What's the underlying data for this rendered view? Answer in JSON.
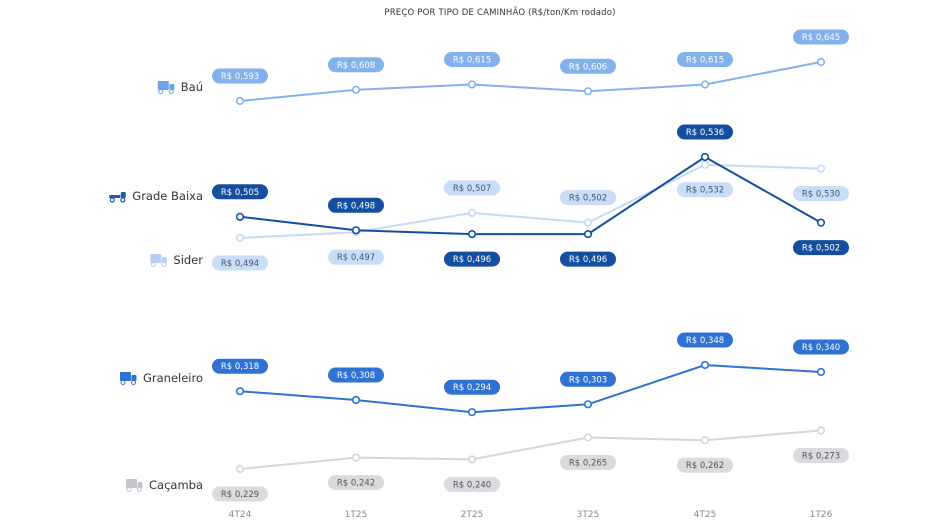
{
  "chart_data": {
    "type": "line",
    "title": "PREÇO POR TIPO DE CAMINHÃO (R$/ton/Km rodado)",
    "categories": [
      "4T24",
      "1T25",
      "2T25",
      "3T25",
      "4T25",
      "1T26"
    ],
    "series": [
      {
        "name": "Baú",
        "icon": "box-truck-icon",
        "values": [
          0.593,
          0.608,
          0.615,
          0.606,
          0.615,
          0.645
        ],
        "labels": [
          "R$ 0,593",
          "R$ 0,608",
          "R$ 0,615",
          "R$ 0,606",
          "R$ 0,615",
          "R$ 0,645"
        ],
        "line_color": "#82b1ec",
        "pill_bg": "#82b1ec",
        "pill_text": "#ffffff"
      },
      {
        "name": "Grade Baixa",
        "icon": "flatbed-truck-icon",
        "values": [
          0.505,
          0.498,
          0.496,
          0.496,
          0.536,
          0.502
        ],
        "labels": [
          "R$ 0,505",
          "R$ 0,498",
          "R$ 0,496",
          "R$ 0,496",
          "R$ 0,536",
          "R$ 0,502"
        ],
        "line_color": "#144ea0",
        "pill_bg": "#144ea0",
        "pill_text": "#ffffff"
      },
      {
        "name": "Sider",
        "icon": "curtain-truck-icon",
        "values": [
          0.494,
          0.497,
          0.507,
          0.502,
          0.532,
          0.53
        ],
        "labels": [
          "R$ 0,494",
          "R$ 0,497",
          "R$ 0,507",
          "R$ 0,502",
          "R$ 0,532",
          "R$ 0,530"
        ],
        "line_color": "#c5daf5",
        "pill_bg": "#c9ddf6",
        "pill_text": "#3f5878"
      },
      {
        "name": "Graneleiro",
        "icon": "grain-truck-icon",
        "values": [
          0.318,
          0.308,
          0.294,
          0.303,
          0.348,
          0.34
        ],
        "labels": [
          "R$ 0,318",
          "R$ 0,308",
          "R$ 0,294",
          "R$ 0,303",
          "R$ 0,348",
          "R$ 0,340"
        ],
        "line_color": "#2f72d3",
        "pill_bg": "#2f72d3",
        "pill_text": "#ffffff"
      },
      {
        "name": "Caçamba",
        "icon": "dump-truck-icon",
        "values": [
          0.229,
          0.242,
          0.24,
          0.265,
          0.262,
          0.273
        ],
        "labels": [
          "R$ 0,229",
          "R$ 0,242",
          "R$ 0,240",
          "R$ 0,265",
          "R$ 0,262",
          "R$ 0,273"
        ],
        "line_color": "#d4d6da",
        "pill_bg": "#d9dbdf",
        "pill_text": "#555555"
      }
    ],
    "grid": false,
    "legend": "left"
  }
}
